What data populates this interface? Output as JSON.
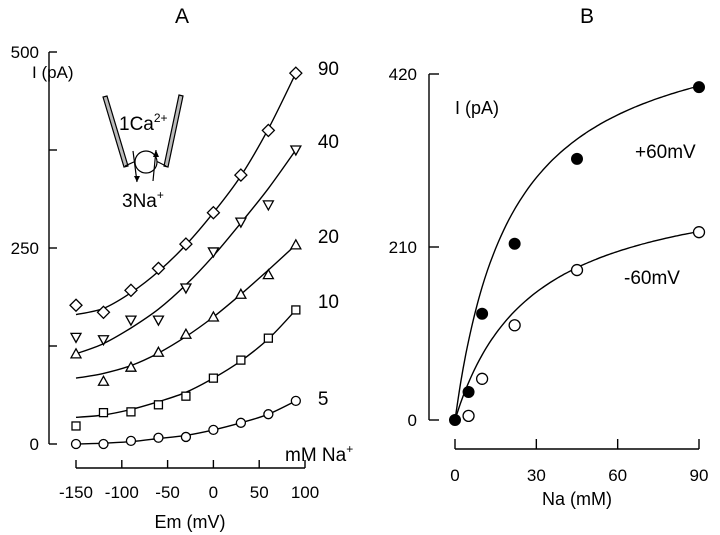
{
  "chart_data": [
    {
      "panel": "A",
      "type": "scatter",
      "title": "A",
      "xlabel": "Em (mV)",
      "ylabel": "I (pA)",
      "xlim": [
        -150,
        100
      ],
      "ylim": [
        0,
        500
      ],
      "xticks": [
        -150,
        -100,
        -50,
        0,
        50,
        100
      ],
      "yticks_labeled": [
        0,
        250,
        500
      ],
      "yticks_minor": [
        125,
        375
      ],
      "grid": false,
      "inset_labels": {
        "top": "1Ca",
        "top_sup": "2+",
        "bottom": "3Na",
        "bottom_sup": "+"
      },
      "series_unit_label": "mM Na",
      "series_unit_sup": "+",
      "x": [
        -150,
        -120,
        -90,
        -60,
        -30,
        0,
        30,
        60,
        90
      ],
      "series": [
        {
          "name": "5",
          "marker": "circle",
          "values": [
            0,
            0,
            4,
            8,
            9,
            18,
            27,
            38,
            55
          ],
          "fit": [
            0,
            1,
            3,
            7,
            11,
            18,
            27,
            38,
            55
          ]
        },
        {
          "name": "10",
          "marker": "square",
          "values": [
            23,
            40,
            41,
            50,
            61,
            84,
            107,
            135,
            171
          ],
          "fit": [
            34,
            37,
            44,
            54,
            66,
            84,
            106,
            134,
            171
          ]
        },
        {
          "name": "20",
          "marker": "triangle-up",
          "values": [
            115,
            80,
            98,
            117,
            140,
            162,
            191,
            216,
            254
          ],
          "fit": [
            84,
            90,
            100,
            116,
            137,
            162,
            191,
            222,
            254
          ]
        },
        {
          "name": "40",
          "marker": "triangle-down",
          "values": [
            136,
            133,
            158,
            158,
            199,
            245,
            283,
            305,
            375
          ],
          "fit": [
            115,
            128,
            148,
            172,
            203,
            240,
            282,
            326,
            375
          ]
        },
        {
          "name": "90",
          "marker": "diamond",
          "values": [
            177,
            168,
            196,
            224,
            255,
            295,
            343,
            400,
            473
          ],
          "fit": [
            165,
            173,
            193,
            220,
            254,
            295,
            342,
            402,
            473
          ]
        }
      ]
    },
    {
      "panel": "B",
      "type": "scatter",
      "title": "B",
      "xlabel": "Na (mM)",
      "ylabel": "I (pA)",
      "xlim": [
        0,
        90
      ],
      "ylim": [
        0,
        420
      ],
      "xticks": [
        0,
        30,
        60,
        90
      ],
      "yticks": [
        0,
        210,
        420
      ],
      "grid": false,
      "x": [
        0,
        5,
        10,
        22,
        45,
        90
      ],
      "series": [
        {
          "name": "+60mV",
          "marker": "filled-circle",
          "x": [
            0,
            5,
            10,
            22,
            45,
            90
          ],
          "values": [
            0,
            34,
            129,
            214,
            317,
            404
          ]
        },
        {
          "name": "-60mV",
          "marker": "open-circle",
          "x": [
            0,
            5,
            10,
            22,
            45,
            90
          ],
          "values": [
            0,
            5,
            50,
            115,
            182,
            228
          ]
        }
      ]
    }
  ]
}
